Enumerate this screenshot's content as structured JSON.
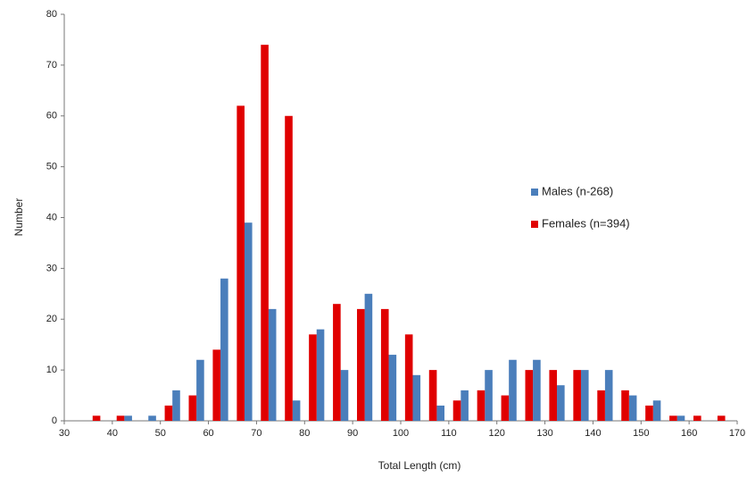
{
  "chart_data": {
    "type": "bar",
    "x": [
      37.5,
      42.5,
      47.5,
      52.5,
      57.5,
      62.5,
      67.5,
      72.5,
      77.5,
      82.5,
      87.5,
      92.5,
      97.5,
      102.5,
      107.5,
      112.5,
      117.5,
      122.5,
      127.5,
      132.5,
      137.5,
      142.5,
      147.5,
      152.5,
      157.5,
      162.5,
      167.5
    ],
    "series": [
      {
        "name": "Males (n-268)",
        "color": "#4a7ebb",
        "values": [
          0,
          1,
          1,
          6,
          12,
          28,
          39,
          22,
          4,
          18,
          10,
          25,
          13,
          9,
          3,
          6,
          10,
          12,
          12,
          7,
          10,
          10,
          5,
          4,
          1,
          0,
          0
        ]
      },
      {
        "name": "Females (n=394)",
        "color": "#e00000",
        "values": [
          1,
          1,
          0,
          3,
          5,
          14,
          62,
          74,
          60,
          17,
          23,
          22,
          22,
          17,
          10,
          4,
          6,
          5,
          10,
          10,
          10,
          6,
          6,
          3,
          1,
          1,
          1
        ]
      }
    ],
    "xlabel": "Total Length (cm)",
    "ylabel": "Number",
    "xlim": [
      30,
      170
    ],
    "xticks": [
      30,
      40,
      50,
      60,
      70,
      80,
      90,
      100,
      110,
      120,
      130,
      140,
      150,
      160,
      170
    ],
    "ylim": [
      0,
      80
    ],
    "yticks": [
      0,
      10,
      20,
      30,
      40,
      50,
      60,
      70,
      80
    ],
    "grid": false,
    "legend": "right"
  }
}
